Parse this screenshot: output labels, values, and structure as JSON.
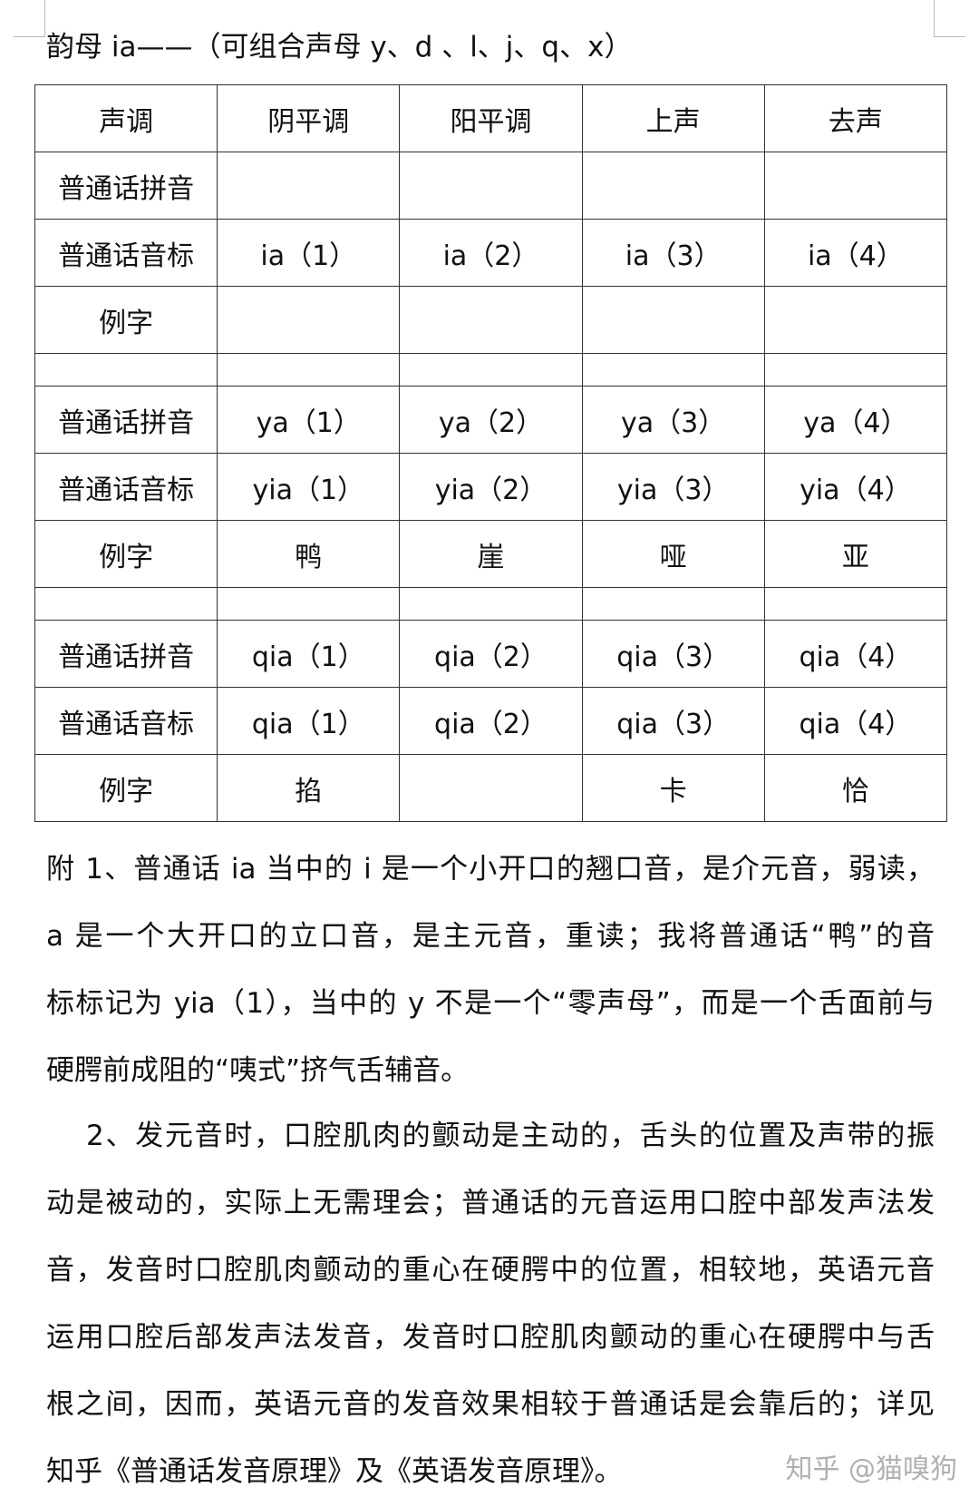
{
  "title": "韵母 ia——（可组合声母 y、d 、l、j、q、x）",
  "table": {
    "header": [
      "声调",
      "阴平调",
      "阳平调",
      "上声",
      "去声"
    ],
    "rows": [
      [
        "普通话拼音",
        "",
        "",
        "",
        ""
      ],
      [
        "普通话音标",
        "ia（1）",
        "ia（2）",
        "ia（3）",
        "ia（4）"
      ],
      [
        "例字",
        "",
        "",
        "",
        ""
      ],
      [
        "",
        "",
        "",
        "",
        ""
      ],
      [
        "普通话拼音",
        "ya（1）",
        "ya（2）",
        "ya（3）",
        "ya（4）"
      ],
      [
        "普通话音标",
        "yia（1）",
        "yia（2）",
        "yia（3）",
        "yia（4）"
      ],
      [
        "例字",
        "鸭",
        "崖",
        "哑",
        "亚"
      ],
      [
        "",
        "",
        "",
        "",
        ""
      ],
      [
        "普通话拼音",
        "qia（1）",
        "qia（2）",
        "qia（3）",
        "qia（4）"
      ],
      [
        "普通话音标",
        "qia（1）",
        "qia（2）",
        "qia（3）",
        "qia（4）"
      ],
      [
        "例字",
        "掐",
        "",
        "卡",
        "恰"
      ]
    ]
  },
  "note1_lines": [
    "附 1、普通话 ia 当中的 i 是一个小开口的翘口音，是介元音，弱读，",
    "a 是一个大开口的立口音，是主元音，重读；我将普通话“鸭”的音",
    "标标记为 yia（1），当中的 y 不是一个“零声母”，而是一个舌面前与",
    "硬腭前成阻的“咦式”挤气舌辅音。"
  ],
  "note2_lines": [
    "2、发元音时，口腔肌肉的颤动是主动的，舌头的位置及声带的振",
    "动是被动的，实际上无需理会；普通话的元音运用口腔中部发声法发",
    "音，发音时口腔肌肉颤动的重心在硬腭中的位置，相较地，英语元音",
    "运用口腔后部发声法发音，发音时口腔肌肉颤动的重心在硬腭中与舌",
    "根之间，因而，英语元音的发音效果相较于普通话是会靠后的；详见",
    "知乎《普通话发音原理》及《英语发音原理》。"
  ],
  "watermark": "知乎 @猫嗅狗"
}
